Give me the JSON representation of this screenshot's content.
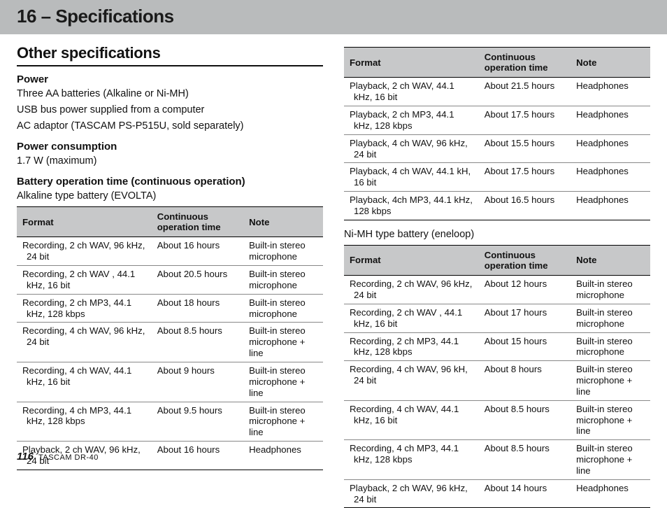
{
  "header": {
    "title": "16 – Specifications"
  },
  "section": {
    "title": "Other specifications"
  },
  "power": {
    "heading": "Power",
    "lines": [
      "Three AA batteries (Alkaline or Ni-MH)",
      "USB bus power supplied from a computer",
      "AC adaptor (TASCAM PS-P515U, sold separately)"
    ]
  },
  "consumption": {
    "heading": "Power consumption",
    "value": "1.7 W (maximum)"
  },
  "battery_heading": "Battery operation time (continuous operation)",
  "table_headers": {
    "format": "Format",
    "time": "Continuous operation time",
    "note": "Note"
  },
  "alkaline": {
    "caption": "Alkaline type battery (EVOLTA)",
    "rows_left": [
      {
        "format": "Recording, 2 ch WAV, 96 kHz, 24 bit",
        "time": "About 16 hours",
        "note": "Built-in stereo microphone"
      },
      {
        "format": "Recording, 2 ch WAV , 44.1 kHz, 16 bit",
        "time": "About 20.5 hours",
        "note": "Built-in stereo microphone"
      },
      {
        "format": "Recording, 2 ch MP3, 44.1 kHz, 128 kbps",
        "time": "About 18 hours",
        "note": "Built-in stereo microphone"
      },
      {
        "format": "Recording, 4 ch WAV, 96 kHz, 24 bit",
        "time": "About 8.5 hours",
        "note": "Built-in stereo microphone + line"
      },
      {
        "format": "Recording, 4 ch WAV, 44.1 kHz, 16 bit",
        "time": "About 9 hours",
        "note": "Built-in stereo microphone + line"
      },
      {
        "format": "Recording, 4 ch MP3, 44.1 kHz, 128 kbps",
        "time": "About 9.5 hours",
        "note": "Built-in stereo microphone + line"
      },
      {
        "format": "Playback, 2 ch WAV, 96 kHz, 24 bit",
        "time": "About 16 hours",
        "note": "Headphones"
      }
    ],
    "rows_right": [
      {
        "format": "Playback, 2 ch WAV, 44.1 kHz, 16 bit",
        "time": "About 21.5 hours",
        "note": "Headphones"
      },
      {
        "format": "Playback, 2 ch MP3, 44.1 kHz, 128 kbps",
        "time": "About 17.5 hours",
        "note": "Headphones"
      },
      {
        "format": "Playback, 4 ch WAV, 96 kHz, 24 bit",
        "time": "About 15.5 hours",
        "note": "Headphones"
      },
      {
        "format": "Playback, 4 ch WAV, 44.1 kH, 16 bit",
        "time": "About 17.5 hours",
        "note": "Headphones"
      },
      {
        "format": "Playback, 4ch MP3, 44.1 kHz, 128 kbps",
        "time": "About 16.5 hours",
        "note": "Headphones"
      }
    ]
  },
  "nimh": {
    "caption": "Ni-MH type battery (eneloop)",
    "rows": [
      {
        "format": "Recording, 2 ch WAV, 96 kHz, 24 bit",
        "time": "About 12 hours",
        "note": "Built-in stereo microphone"
      },
      {
        "format": "Recording, 2 ch WAV , 44.1 kHz, 16 bit",
        "time": "About 17 hours",
        "note": "Built-in stereo microphone"
      },
      {
        "format": "Recording, 2 ch MP3, 44.1 kHz, 128 kbps",
        "time": "About 15 hours",
        "note": "Built-in stereo microphone"
      },
      {
        "format": "Recording, 4 ch WAV, 96 kH, 24 bit",
        "time": "About 8 hours",
        "note": "Built-in stereo microphone + line"
      },
      {
        "format": "Recording, 4 ch WAV, 44.1 kHz, 16 bit",
        "time": "About 8.5 hours",
        "note": "Built-in stereo microphone + line"
      },
      {
        "format": "Recording, 4 ch MP3, 44.1 kHz, 128 kbps",
        "time": "About 8.5 hours",
        "note": "Built-in stereo microphone + line"
      },
      {
        "format": "Playback, 2 ch WAV, 96 kHz, 24 bit",
        "time": "About 14 hours",
        "note": "Headphones"
      }
    ]
  },
  "footer": {
    "page": "116",
    "model": "TASCAM DR-40"
  },
  "style": {
    "colors": {
      "titlebar_bg": "#b9bbbc",
      "thead_bg": "#c7c8c9",
      "rule": "#000000",
      "row_rule": "#888888",
      "text": "#111111",
      "page_bg": "#ffffff"
    },
    "fonts": {
      "title_size_pt": 20,
      "section_size_pt": 17,
      "body_size_pt": 11,
      "table_size_pt": 10
    },
    "column_widths_pct": {
      "format": 44,
      "time": 30,
      "note": 26
    }
  }
}
